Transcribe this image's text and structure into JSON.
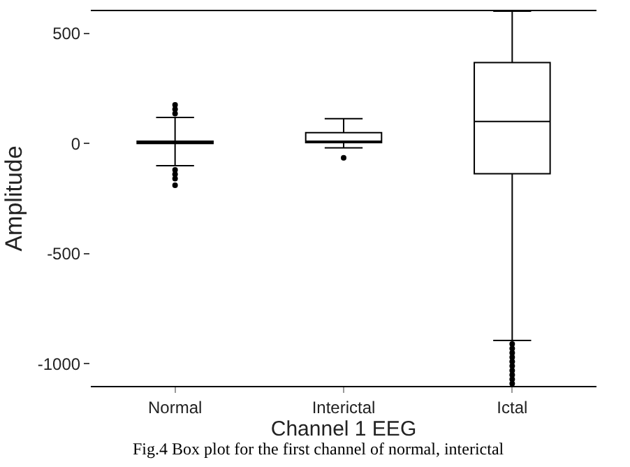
{
  "chart_data": {
    "type": "box",
    "xlabel": "Channel 1 EEG",
    "ylabel": "Amplitude",
    "categories": [
      "Normal",
      "Interictal",
      "Ictal"
    ],
    "boxes": [
      {
        "low": -101,
        "q1": 0,
        "median": 5,
        "q3": 10,
        "high": 118,
        "outliers": [
          135,
          155,
          175,
          -120,
          -140,
          -160,
          -190
        ]
      },
      {
        "low": -20,
        "q1": 4,
        "median": 10,
        "q3": 49,
        "high": 112,
        "outliers": [
          -65
        ]
      },
      {
        "low": -894,
        "q1": -137,
        "median": 100,
        "q3": 367,
        "high": 600,
        "outliers": [
          -910,
          -930,
          -950,
          -970,
          -990,
          -1010,
          -1030,
          -1050,
          -1070,
          -1090
        ]
      }
    ],
    "color": "#000000",
    "ylim": [
      -1100,
      600
    ],
    "yticks": [
      500,
      0,
      -500,
      -1000
    ],
    "grid": false,
    "annotations": [
      "Fig.4 Box plot for the first channel of normal, interictal"
    ]
  }
}
